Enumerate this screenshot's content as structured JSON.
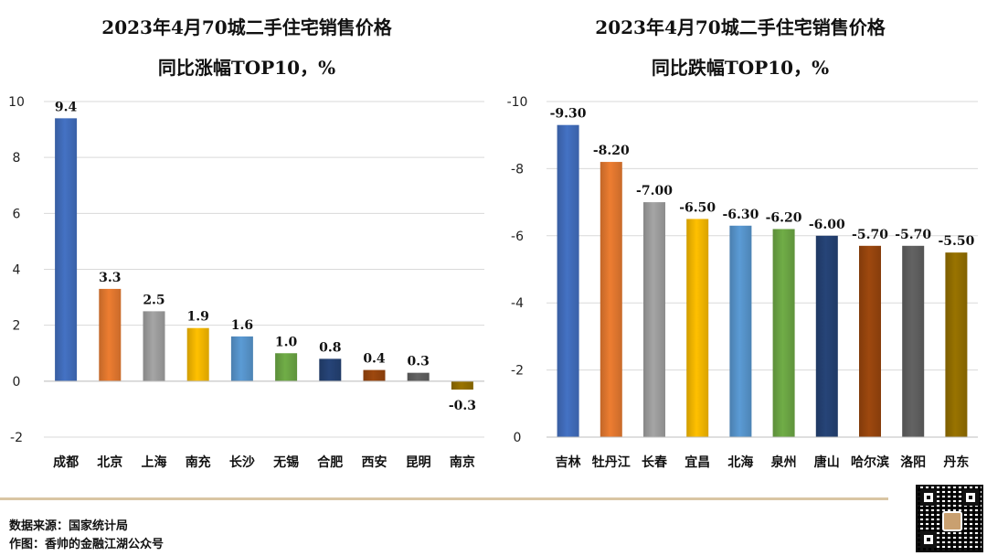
{
  "chart_data": [
    {
      "type": "bar",
      "title": "2023年4月70城二手住宅销售价格",
      "subtitle": "同比涨幅TOP10，%",
      "categories": [
        "成都",
        "北京",
        "上海",
        "南充",
        "长沙",
        "无锡",
        "合肥",
        "西安",
        "昆明",
        "南京"
      ],
      "values": [
        9.4,
        3.3,
        2.5,
        1.9,
        1.6,
        1.0,
        0.8,
        0.4,
        0.3,
        -0.3
      ],
      "value_labels": [
        "9.4",
        "3.3",
        "2.5",
        "1.9",
        "1.6",
        "1.0",
        "0.8",
        "0.4",
        "0.3",
        "-0.3"
      ],
      "colors": [
        "#4472c4",
        "#ed7d31",
        "#a5a5a5",
        "#ffc000",
        "#5b9bd5",
        "#70ad47",
        "#264478",
        "#9e480e",
        "#636363",
        "#997300"
      ],
      "yticks": [
        10,
        8,
        6,
        4,
        2,
        0,
        -2
      ],
      "ytick_labels": [
        "10",
        "8",
        "6",
        "4",
        "2",
        "0",
        "-2"
      ],
      "ylim": [
        -2,
        10
      ],
      "xlabel": "",
      "ylabel": "",
      "grid": true
    },
    {
      "type": "bar",
      "title": "2023年4月70城二手住宅销售价格",
      "subtitle": "同比跌幅TOP10，%",
      "categories": [
        "吉林",
        "牡丹江",
        "长春",
        "宜昌",
        "北海",
        "泉州",
        "唐山",
        "哈尔滨",
        "洛阳",
        "丹东"
      ],
      "values": [
        -9.3,
        -8.2,
        -7.0,
        -6.5,
        -6.3,
        -6.2,
        -6.0,
        -5.7,
        -5.7,
        -5.5
      ],
      "value_labels": [
        "-9.30",
        "-8.20",
        "-7.00",
        "-6.50",
        "-6.30",
        "-6.20",
        "-6.00",
        "-5.70",
        "-5.70",
        "-5.50"
      ],
      "colors": [
        "#4472c4",
        "#ed7d31",
        "#a5a5a5",
        "#ffc000",
        "#5b9bd5",
        "#70ad47",
        "#264478",
        "#9e480e",
        "#636363",
        "#997300"
      ],
      "yticks": [
        -10,
        -8,
        -6,
        -4,
        -2,
        0
      ],
      "ytick_labels": [
        "-10",
        "-8",
        "-6",
        "-4",
        "-2",
        "0"
      ],
      "ylim": [
        -10,
        0
      ],
      "inverted": true,
      "xlabel": "",
      "ylabel": "",
      "grid": true
    }
  ],
  "footer": {
    "source": "数据来源：国家统计局",
    "author": "作图：香帅的金融江湖公众号"
  }
}
